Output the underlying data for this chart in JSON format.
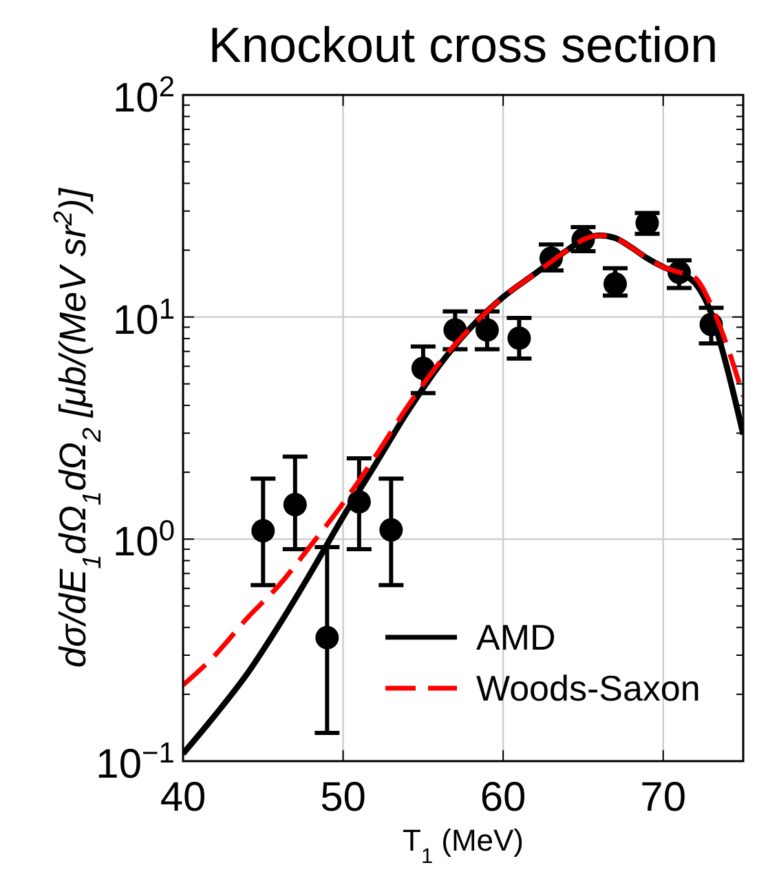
{
  "chart_data": {
    "type": "line",
    "title": "Knockout cross section",
    "xlabel": "T$_{1}$ (MeV)",
    "ylabel": "dσ/dE$_{1}$dΩ$_{1}$dΩ$_{2}$ [μb/(MeV sr$^{2}$)]",
    "xlim": [
      40,
      75
    ],
    "xticks": [
      40,
      50,
      60,
      70
    ],
    "ylim": [
      0.1,
      100
    ],
    "log": "y",
    "yticks": [
      {
        "value": 0.1,
        "label": "10$^{−1}$"
      },
      {
        "value": 0.2,
        "label": null
      },
      {
        "value": 0.3,
        "label": null
      },
      {
        "value": 0.4,
        "label": null
      },
      {
        "value": 0.5,
        "label": null
      },
      {
        "value": 0.6,
        "label": null
      },
      {
        "value": 0.7,
        "label": null
      },
      {
        "value": 0.8,
        "label": null
      },
      {
        "value": 0.9,
        "label": null
      },
      {
        "value": 1,
        "label": "10$^{0}$"
      },
      {
        "value": 2,
        "label": null
      },
      {
        "value": 3,
        "label": null
      },
      {
        "value": 4,
        "label": null
      },
      {
        "value": 5,
        "label": null
      },
      {
        "value": 6,
        "label": null
      },
      {
        "value": 7,
        "label": null
      },
      {
        "value": 8,
        "label": null
      },
      {
        "value": 9,
        "label": null
      },
      {
        "value": 10,
        "label": "10$^{1}$"
      },
      {
        "value": 20,
        "label": null
      },
      {
        "value": 30,
        "label": null
      },
      {
        "value": 40,
        "label": null
      },
      {
        "value": 50,
        "label": null
      },
      {
        "value": 60,
        "label": null
      },
      {
        "value": 70,
        "label": null
      },
      {
        "value": 80,
        "label": null
      },
      {
        "value": 90,
        "label": null
      },
      {
        "value": 100,
        "label": "10$^{2}$"
      }
    ],
    "grid": true,
    "legend": "bottom right",
    "series": [
      {
        "type": "scatter",
        "color": "#000000",
        "marker": "circle",
        "x": [
          45,
          47,
          49,
          51,
          53,
          55,
          57,
          59,
          61,
          63,
          65,
          67,
          69,
          71,
          73
        ],
        "values": [
          1.09,
          1.43,
          0.36,
          1.47,
          1.1,
          5.87,
          8.74,
          8.74,
          8.03,
          18.4,
          22.3,
          14.1,
          26.5,
          15.9,
          9.26
        ],
        "errors": [
          [
            0.62,
            1.87
          ],
          [
            0.9,
            2.35
          ],
          [
            0.134,
            0.92
          ],
          [
            0.9,
            2.31
          ],
          [
            0.62,
            1.87
          ],
          [
            4.54,
            7.37
          ],
          [
            7.16,
            10.6
          ],
          [
            7.16,
            10.6
          ],
          [
            6.5,
            9.9
          ],
          [
            16.2,
            21.2
          ],
          [
            19.8,
            25.4
          ],
          [
            12.5,
            16.6
          ],
          [
            23.7,
            29.4
          ],
          [
            13.5,
            18.0
          ],
          [
            7.6,
            11.0
          ]
        ]
      },
      {
        "type": "line",
        "name": "AMD",
        "color": "#000000",
        "line_style": "solid",
        "x": [
          40,
          42,
          44,
          46,
          48,
          50,
          52,
          54,
          56,
          58,
          60,
          62,
          64,
          65,
          66,
          67,
          68,
          69,
          70,
          71,
          72,
          73,
          74,
          75
        ],
        "values": [
          0.108,
          0.161,
          0.247,
          0.41,
          0.71,
          1.26,
          2.16,
          3.72,
          6.04,
          9.0,
          12.3,
          15.7,
          20.0,
          22.3,
          23.3,
          22.7,
          20.6,
          18.4,
          16.8,
          15.7,
          14.2,
          10.4,
          5.87,
          2.96
        ]
      },
      {
        "type": "line",
        "name": "Woods-Saxon",
        "color": "#ff0000",
        "line_style": "dashed",
        "x": [
          40,
          42,
          44,
          46,
          48,
          50,
          52,
          54,
          56,
          58,
          60,
          62,
          64,
          65,
          66,
          67,
          68,
          69,
          70,
          71,
          72,
          73,
          74,
          75
        ],
        "values": [
          0.22,
          0.3,
          0.44,
          0.62,
          0.94,
          1.45,
          2.35,
          3.93,
          6.2,
          9.0,
          12.3,
          15.7,
          20.0,
          22.3,
          23.3,
          22.7,
          20.6,
          18.4,
          16.8,
          15.9,
          15.0,
          11.3,
          7.4,
          4.4
        ]
      }
    ]
  }
}
